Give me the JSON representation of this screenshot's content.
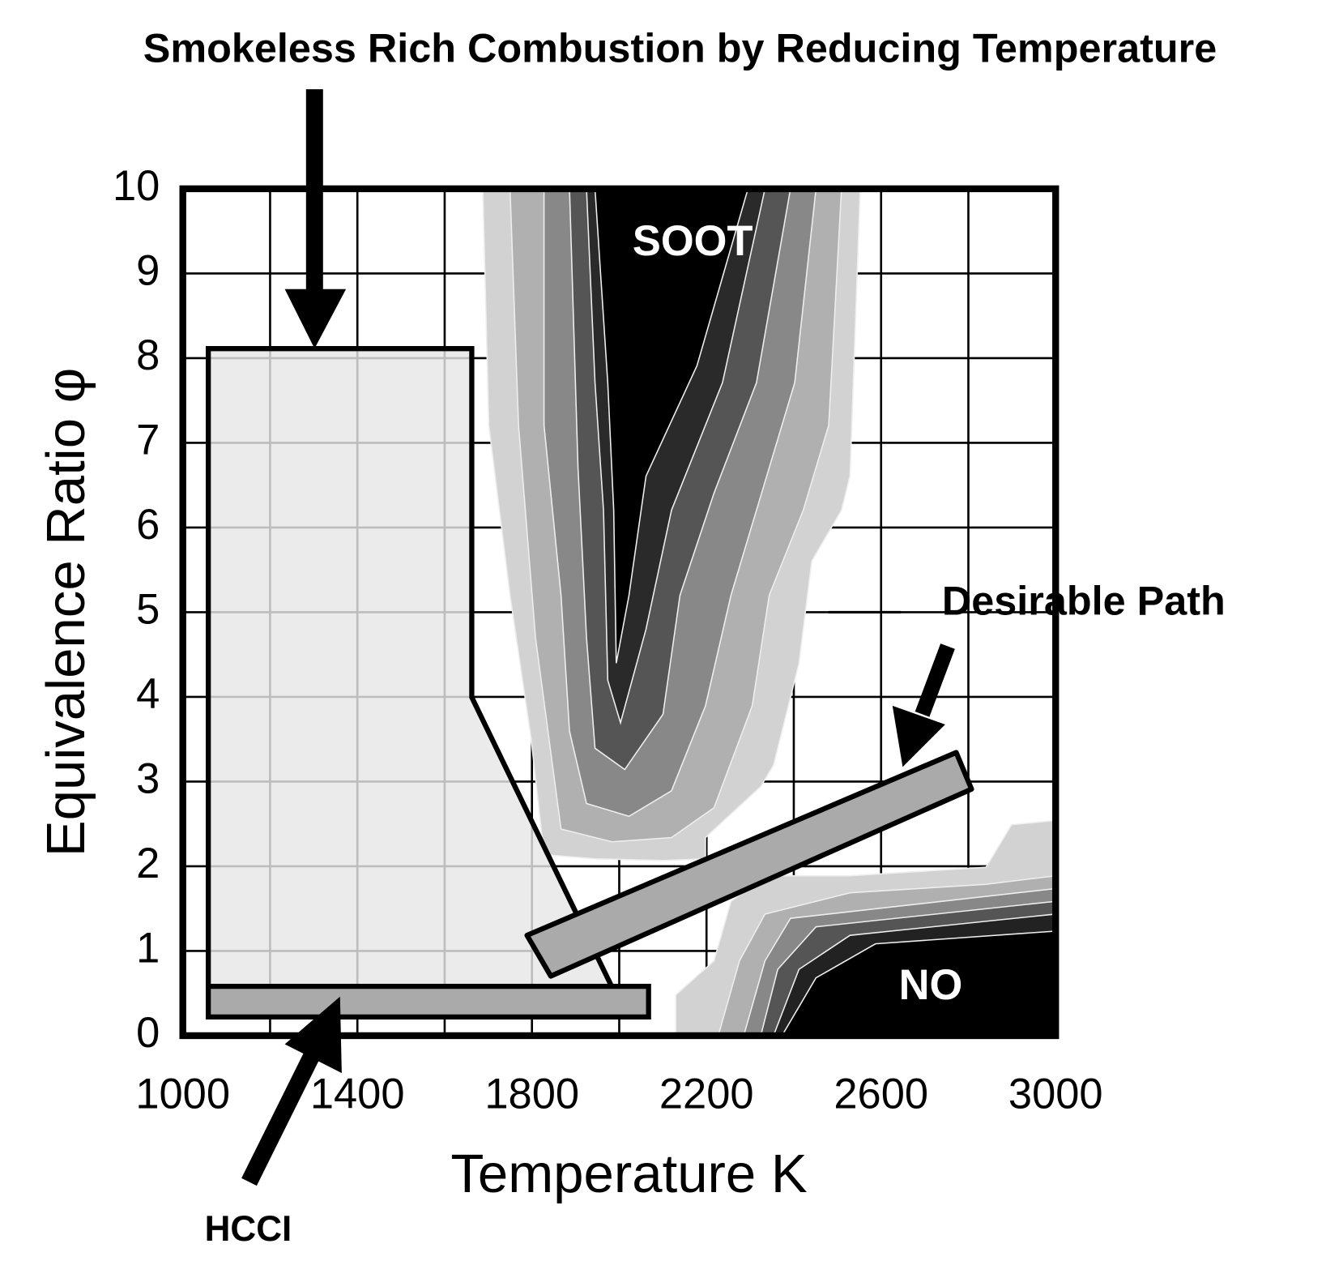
{
  "chart_data": {
    "type": "region-map",
    "title": "Smokeless Rich Combustion by Reducing Temperature",
    "x_label": "Temperature K",
    "y_label": "Equivalence Ratio  φ",
    "xlim": [
      1000,
      3000
    ],
    "ylim": [
      0,
      10
    ],
    "xticks": [
      1000,
      1400,
      1800,
      2200,
      2600,
      3000
    ],
    "yticks": [
      0,
      1,
      2,
      3,
      4,
      5,
      6,
      7,
      8,
      9,
      10
    ],
    "x_grid": [
      1200,
      1600,
      2000,
      2400,
      2800
    ],
    "grid": true,
    "annotations": [
      "SOOT",
      "NO",
      "Desirable Path",
      "HCCI"
    ]
  }
}
